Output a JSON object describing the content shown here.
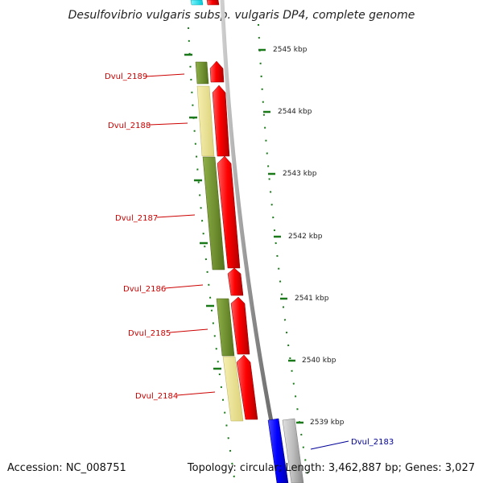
{
  "title": "Desulfovibrio vulgaris subsp. vulgaris DP4, complete genome",
  "footer": {
    "accession": "Accession: NC_008751",
    "stats": "Topology: circular; Length: 3,462,887 bp; Genes: 3,027"
  },
  "scale_labels": [
    "2545 kbp",
    "2544 kbp",
    "2543 kbp",
    "2542 kbp",
    "2541 kbp",
    "2540 kbp",
    "2539 kbp"
  ],
  "genes": [
    {
      "id": "Dvul_2189",
      "color": "#cc0000"
    },
    {
      "id": "Dvul_2188",
      "color": "#cc0000"
    },
    {
      "id": "Dvul_2187",
      "color": "#cc0000"
    },
    {
      "id": "Dvul_2186",
      "color": "#cc0000"
    },
    {
      "id": "Dvul_2185",
      "color": "#cc0000"
    },
    {
      "id": "Dvul_2184",
      "color": "#cc0000"
    },
    {
      "id": "Dvul_2183",
      "color": "#000099"
    }
  ],
  "colors": {
    "forward_gene": "#ff0000",
    "reverse_gene": "#0000ff",
    "cds_olive": "#6b8e23",
    "cds_khaki": "#f0e68c",
    "feature_cyan": "#00e5ee",
    "feature_gray": "#bbbbbb",
    "backbone": "#888888",
    "tick": "#1a7a1a"
  }
}
